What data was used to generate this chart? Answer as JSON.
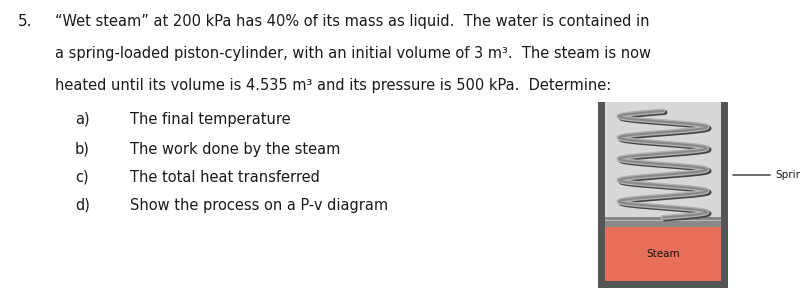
{
  "problem_number": "5.",
  "main_text_lines": [
    "“Wet steam” at 200 kPa has 40% of its mass as liquid.  The water is contained in",
    "a spring-loaded piston-cylinder, with an initial volume of 3 m³.  The steam is now",
    "heated until its volume is 4.535 m³ and its pressure is 500 kPa.  Determine:"
  ],
  "sub_items": [
    [
      "a)",
      "The final temperature"
    ],
    [
      "b)",
      "The work done by the steam"
    ],
    [
      "c)",
      "The total heat transferred"
    ],
    [
      "d)",
      "Show the process on a P-v diagram"
    ]
  ],
  "spring_label": "Spring",
  "steam_label": "Steam",
  "bg_color": "#ffffff",
  "text_color": "#1a1a1a",
  "cylinder_wall_color": "#555555",
  "piston_color": "#999999",
  "steam_color": "#e8705a",
  "spring_dark": "#707070",
  "spring_light": "#b0b0b0",
  "label_fontsize": 7.5,
  "main_fontsize": 10.5,
  "num_fontsize": 11
}
